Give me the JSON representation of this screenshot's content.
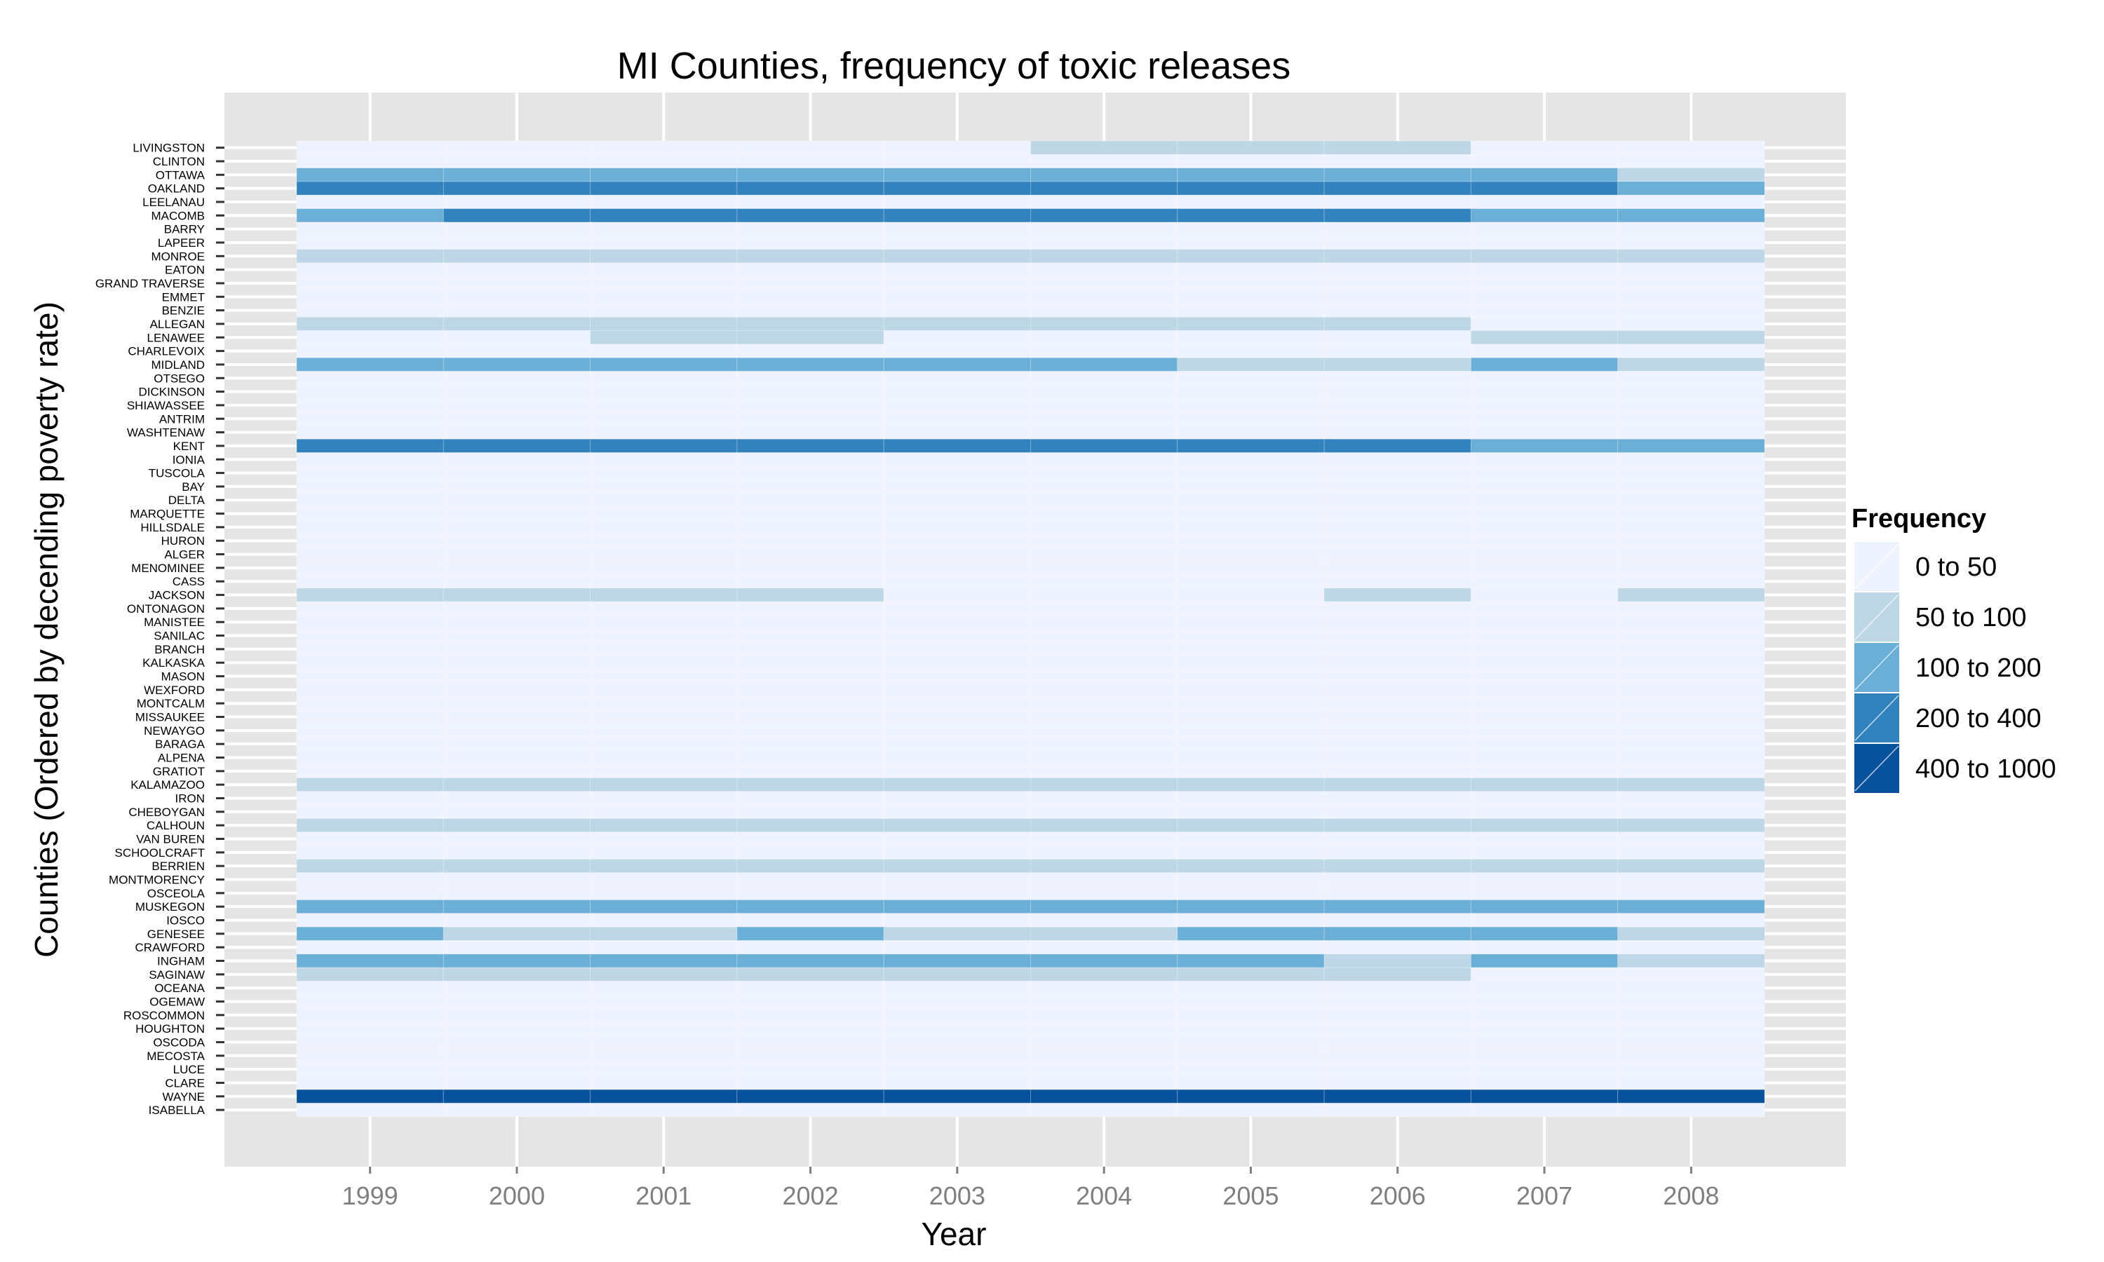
{
  "chart_data": {
    "type": "heatmap",
    "title": "MI Counties, frequency of toxic releases",
    "xlabel": "Year",
    "ylabel": "Counties (Ordered by decending poverty rate)",
    "grid": true,
    "x": [
      "1999",
      "2000",
      "2001",
      "2002",
      "2003",
      "2004",
      "2005",
      "2006",
      "2007",
      "2008"
    ],
    "y": [
      "LIVINGSTON",
      "CLINTON",
      "OTTAWA",
      "OAKLAND",
      "LEELANAU",
      "MACOMB",
      "BARRY",
      "LAPEER",
      "MONROE",
      "EATON",
      "GRAND TRAVERSE",
      "EMMET",
      "BENZIE",
      "ALLEGAN",
      "LENAWEE",
      "CHARLEVOIX",
      "MIDLAND",
      "OTSEGO",
      "DICKINSON",
      "SHIAWASSEE",
      "ANTRIM",
      "WASHTENAW",
      "KENT",
      "IONIA",
      "TUSCOLA",
      "BAY",
      "DELTA",
      "MARQUETTE",
      "HILLSDALE",
      "HURON",
      "ALGER",
      "MENOMINEE",
      "CASS",
      "JACKSON",
      "ONTONAGON",
      "MANISTEE",
      "SANILAC",
      "BRANCH",
      "KALKASKA",
      "MASON",
      "WEXFORD",
      "MONTCALM",
      "MISSAUKEE",
      "NEWAYGO",
      "BARAGA",
      "ALPENA",
      "GRATIOT",
      "KALAMAZOO",
      "IRON",
      "CHEBOYGAN",
      "CALHOUN",
      "VAN BUREN",
      "SCHOOLCRAFT",
      "BERRIEN",
      "MONTMORENCY",
      "OSCEOLA",
      "MUSKEGON",
      "IOSCO",
      "GENESEE",
      "CRAWFORD",
      "INGHAM",
      "SAGINAW",
      "OCEANA",
      "OGEMAW",
      "ROSCOMMON",
      "HOUGHTON",
      "OSCODA",
      "MECOSTA",
      "LUCE",
      "CLARE",
      "WAYNE",
      "ISABELLA"
    ],
    "legend": {
      "title": "Frequency",
      "position": "right",
      "bins": [
        "0 to 50",
        "50 to 100",
        "100 to 200",
        "200 to 400",
        "400 to 1000"
      ],
      "colors": [
        "#eff3ff",
        "#bdd7e7",
        "#6baed6",
        "#3182bd",
        "#08519c"
      ]
    },
    "colors": {
      "panel_background": "#e5e5e5",
      "grid_line": "#ffffff",
      "tick_label": "#7f7f7f"
    },
    "bin_index_by_row": {
      "LIVINGSTON": [
        0,
        0,
        0,
        0,
        0,
        1,
        1,
        1,
        0,
        0
      ],
      "OTTAWA": [
        2,
        2,
        2,
        2,
        2,
        2,
        2,
        2,
        2,
        1
      ],
      "OAKLAND": [
        3,
        3,
        3,
        3,
        3,
        3,
        3,
        3,
        3,
        2
      ],
      "MACOMB": [
        2,
        3,
        3,
        3,
        3,
        3,
        3,
        3,
        2,
        2
      ],
      "MONROE": [
        1,
        1,
        1,
        1,
        1,
        1,
        1,
        1,
        1,
        1
      ],
      "ALLEGAN": [
        1,
        1,
        1,
        1,
        1,
        1,
        1,
        1,
        0,
        0
      ],
      "LENAWEE": [
        0,
        0,
        1,
        1,
        0,
        0,
        0,
        0,
        1,
        1
      ],
      "MIDLAND": [
        2,
        2,
        2,
        2,
        2,
        2,
        1,
        1,
        2,
        1
      ],
      "KENT": [
        3,
        3,
        3,
        3,
        3,
        3,
        3,
        3,
        2,
        2
      ],
      "JACKSON": [
        1,
        1,
        1,
        1,
        0,
        0,
        0,
        1,
        0,
        1
      ],
      "KALAMAZOO": [
        1,
        1,
        1,
        1,
        1,
        1,
        1,
        1,
        1,
        1
      ],
      "CALHOUN": [
        1,
        1,
        1,
        1,
        1,
        1,
        1,
        1,
        1,
        1
      ],
      "BERRIEN": [
        1,
        1,
        1,
        1,
        1,
        1,
        1,
        1,
        1,
        1
      ],
      "MUSKEGON": [
        2,
        2,
        2,
        2,
        2,
        2,
        2,
        2,
        2,
        2
      ],
      "GENESEE": [
        2,
        1,
        1,
        2,
        1,
        1,
        2,
        2,
        2,
        1
      ],
      "INGHAM": [
        2,
        2,
        2,
        2,
        2,
        2,
        2,
        1,
        2,
        1
      ],
      "SAGINAW": [
        1,
        1,
        1,
        1,
        1,
        1,
        1,
        1,
        0,
        0
      ],
      "WAYNE": [
        4,
        4,
        4,
        4,
        4,
        4,
        4,
        4,
        4,
        4
      ]
    },
    "default_bin_index": 0
  }
}
